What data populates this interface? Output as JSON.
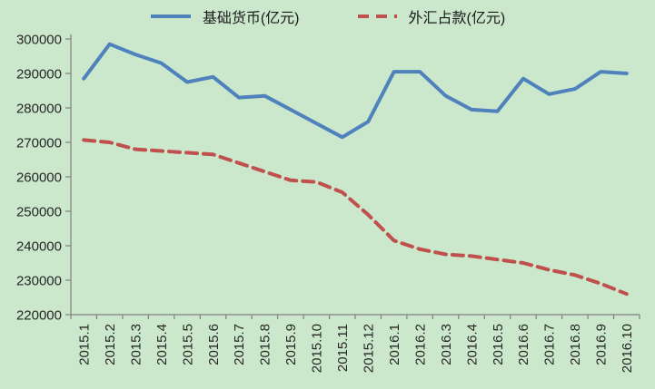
{
  "colors": {
    "background": "#CBE8CC",
    "axis": "#7F7F7F",
    "text": "#262626",
    "base_money_line": "#4F81BD",
    "fx_deposits_line": "#C0504D"
  },
  "legend": {
    "position": "top-center"
  },
  "chart_data": {
    "type": "line",
    "title": "",
    "xlabel": "",
    "ylabel": "",
    "ylim": [
      220000,
      300000
    ],
    "ytick_step": 10000,
    "y_tick_labels": [
      "220000",
      "230000",
      "240000",
      "250000",
      "260000",
      "270000",
      "280000",
      "290000",
      "300000"
    ],
    "x_tick_label_rotation": -90,
    "grid": false,
    "legend_position": "top",
    "categories": [
      "2015.1",
      "2015.2",
      "2015.3",
      "2015.4",
      "2015.5",
      "2015.6",
      "2015.7",
      "2015.8",
      "2015.9",
      "2015.10",
      "2015.11",
      "2015.12",
      "2016.1",
      "2016.2",
      "2016.3",
      "2016.4",
      "2016.5",
      "2016.6",
      "2016.7",
      "2016.8",
      "2016.9",
      "2016.10"
    ],
    "series": [
      {
        "id": "base-money",
        "name": "基础货币(亿元)",
        "color": "#4F81BD",
        "style": "solid",
        "values": [
          288500,
          298500,
          295500,
          293000,
          287500,
          289000,
          283000,
          283500,
          279500,
          275500,
          271500,
          276000,
          290500,
          290500,
          283500,
          279500,
          279000,
          288500,
          284000,
          285500,
          290500,
          290000
        ]
      },
      {
        "id": "fx-deposits",
        "name": "外汇占款(亿元)",
        "color": "#C0504D",
        "style": "dashed",
        "values": [
          270700,
          270000,
          268000,
          267500,
          267000,
          266500,
          264000,
          261500,
          259000,
          258500,
          255500,
          249000,
          241500,
          239000,
          237500,
          237000,
          236000,
          235000,
          233000,
          231500,
          229000,
          226000
        ]
      }
    ]
  }
}
